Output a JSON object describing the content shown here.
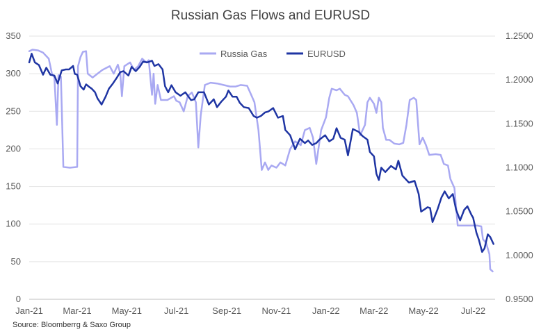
{
  "chart_data": {
    "type": "line",
    "title": "Russian Gas Flows and EURUSD",
    "source": "Source: Bloomberrg & Saxo Group",
    "x_tick_labels": [
      "Jan-21",
      "Mar-21",
      "May-21",
      "Jul-21",
      "Sep-21",
      "Nov-21",
      "Jan-22",
      "Mar-22",
      "May-22",
      "Jul-22"
    ],
    "x_range": [
      "2021-01-01",
      "2022-07-28"
    ],
    "y_left": {
      "ticks": [
        "0",
        "50",
        "100",
        "150",
        "200",
        "250",
        "300",
        "350"
      ],
      "ylim": [
        0,
        350
      ]
    },
    "y_right": {
      "ticks": [
        "0.9500",
        "1.0000",
        "1.0500",
        "1.1000",
        "1.1500",
        "1.2000",
        "1.2500"
      ],
      "ylim": [
        0.95,
        1.25
      ]
    },
    "legend": {
      "position": "top-center"
    },
    "grid": "horizontal",
    "series": [
      {
        "name": "Russia Gas",
        "axis": "left",
        "color": "#a9a9f2",
        "points": [
          [
            "2021-01-01",
            330
          ],
          [
            "2021-01-05",
            332
          ],
          [
            "2021-01-12",
            331
          ],
          [
            "2021-01-18",
            328
          ],
          [
            "2021-01-25",
            320
          ],
          [
            "2021-01-29",
            300
          ],
          [
            "2021-02-01",
            295
          ],
          [
            "2021-02-04",
            232
          ],
          [
            "2021-02-06",
            298
          ],
          [
            "2021-02-09",
            296
          ],
          [
            "2021-02-12",
            176
          ],
          [
            "2021-02-20",
            175
          ],
          [
            "2021-03-01",
            176
          ],
          [
            "2021-03-02",
            310
          ],
          [
            "2021-03-05",
            322
          ],
          [
            "2021-03-08",
            329
          ],
          [
            "2021-03-12",
            330
          ],
          [
            "2021-03-14",
            300
          ],
          [
            "2021-03-20",
            295
          ],
          [
            "2021-03-26",
            300
          ],
          [
            "2021-04-01",
            305
          ],
          [
            "2021-04-10",
            310
          ],
          [
            "2021-04-15",
            300
          ],
          [
            "2021-04-20",
            312
          ],
          [
            "2021-04-23",
            300
          ],
          [
            "2021-04-25",
            270
          ],
          [
            "2021-04-28",
            310
          ],
          [
            "2021-05-05",
            315
          ],
          [
            "2021-05-10",
            305
          ],
          [
            "2021-05-15",
            310
          ],
          [
            "2021-05-20",
            320
          ],
          [
            "2021-05-25",
            315
          ],
          [
            "2021-05-28",
            318
          ],
          [
            "2021-06-01",
            272
          ],
          [
            "2021-06-03",
            300
          ],
          [
            "2021-06-05",
            260
          ],
          [
            "2021-06-08",
            285
          ],
          [
            "2021-06-12",
            265
          ],
          [
            "2021-06-20",
            265
          ],
          [
            "2021-06-28",
            270
          ],
          [
            "2021-07-01",
            264
          ],
          [
            "2021-07-05",
            262
          ],
          [
            "2021-07-10",
            250
          ],
          [
            "2021-07-15",
            270
          ],
          [
            "2021-07-20",
            275
          ],
          [
            "2021-07-25",
            262
          ],
          [
            "2021-07-28",
            202
          ],
          [
            "2021-07-31",
            245
          ],
          [
            "2021-08-05",
            285
          ],
          [
            "2021-08-12",
            288
          ],
          [
            "2021-08-20",
            287
          ],
          [
            "2021-08-28",
            285
          ],
          [
            "2021-09-05",
            283
          ],
          [
            "2021-09-12",
            283
          ],
          [
            "2021-09-18",
            285
          ],
          [
            "2021-09-26",
            284
          ],
          [
            "2021-10-01",
            272
          ],
          [
            "2021-10-05",
            262
          ],
          [
            "2021-10-10",
            225
          ],
          [
            "2021-10-14",
            172
          ],
          [
            "2021-10-18",
            182
          ],
          [
            "2021-10-22",
            172
          ],
          [
            "2021-10-26",
            178
          ],
          [
            "2021-11-01",
            175
          ],
          [
            "2021-11-06",
            182
          ],
          [
            "2021-11-12",
            178
          ],
          [
            "2021-11-18",
            200
          ],
          [
            "2021-11-24",
            210
          ],
          [
            "2021-12-01",
            205
          ],
          [
            "2021-12-06",
            225
          ],
          [
            "2021-12-12",
            228
          ],
          [
            "2021-12-16",
            215
          ],
          [
            "2021-12-20",
            180
          ],
          [
            "2021-12-26",
            225
          ],
          [
            "2022-01-01",
            242
          ],
          [
            "2022-01-05",
            268
          ],
          [
            "2022-01-08",
            280
          ],
          [
            "2022-01-14",
            278
          ],
          [
            "2022-01-18",
            280
          ],
          [
            "2022-01-24",
            272
          ],
          [
            "2022-01-28",
            270
          ],
          [
            "2022-02-04",
            258
          ],
          [
            "2022-02-08",
            248
          ],
          [
            "2022-02-12",
            218
          ],
          [
            "2022-02-18",
            232
          ],
          [
            "2022-02-21",
            262
          ],
          [
            "2022-02-24",
            268
          ],
          [
            "2022-03-01",
            260
          ],
          [
            "2022-03-04",
            248
          ],
          [
            "2022-03-07",
            268
          ],
          [
            "2022-03-10",
            262
          ],
          [
            "2022-03-12",
            228
          ],
          [
            "2022-03-16",
            212
          ],
          [
            "2022-03-20",
            212
          ],
          [
            "2022-03-26",
            207
          ],
          [
            "2022-04-01",
            206
          ],
          [
            "2022-04-06",
            208
          ],
          [
            "2022-04-10",
            232
          ],
          [
            "2022-04-14",
            265
          ],
          [
            "2022-04-19",
            268
          ],
          [
            "2022-04-22",
            265
          ],
          [
            "2022-04-26",
            206
          ],
          [
            "2022-04-30",
            215
          ],
          [
            "2022-05-04",
            205
          ],
          [
            "2022-05-08",
            192
          ],
          [
            "2022-05-16",
            193
          ],
          [
            "2022-05-22",
            192
          ],
          [
            "2022-05-26",
            180
          ],
          [
            "2022-05-31",
            178
          ],
          [
            "2022-06-03",
            160
          ],
          [
            "2022-06-08",
            148
          ],
          [
            "2022-06-12",
            98
          ],
          [
            "2022-06-20",
            98
          ],
          [
            "2022-06-28",
            98
          ],
          [
            "2022-07-06",
            98
          ],
          [
            "2022-07-11",
            97
          ],
          [
            "2022-07-13",
            80
          ],
          [
            "2022-07-17",
            75
          ],
          [
            "2022-07-21",
            60
          ],
          [
            "2022-07-22",
            40
          ],
          [
            "2022-07-25",
            37
          ]
        ]
      },
      {
        "name": "EURUSD",
        "axis": "right",
        "color": "#1f35a3",
        "points": [
          [
            "2021-01-01",
            1.22
          ],
          [
            "2021-01-04",
            1.23
          ],
          [
            "2021-01-08",
            1.22
          ],
          [
            "2021-01-13",
            1.217
          ],
          [
            "2021-01-18",
            1.206
          ],
          [
            "2021-01-22",
            1.214
          ],
          [
            "2021-01-27",
            1.206
          ],
          [
            "2021-02-01",
            1.205
          ],
          [
            "2021-02-05",
            1.196
          ],
          [
            "2021-02-10",
            1.211
          ],
          [
            "2021-02-15",
            1.212
          ],
          [
            "2021-02-19",
            1.212
          ],
          [
            "2021-02-24",
            1.216
          ],
          [
            "2021-02-26",
            1.207
          ],
          [
            "2021-03-01",
            1.206
          ],
          [
            "2021-03-05",
            1.193
          ],
          [
            "2021-03-09",
            1.189
          ],
          [
            "2021-03-12",
            1.195
          ],
          [
            "2021-03-16",
            1.192
          ],
          [
            "2021-03-19",
            1.19
          ],
          [
            "2021-03-23",
            1.186
          ],
          [
            "2021-03-26",
            1.179
          ],
          [
            "2021-03-31",
            1.172
          ],
          [
            "2021-04-05",
            1.181
          ],
          [
            "2021-04-09",
            1.19
          ],
          [
            "2021-04-14",
            1.196
          ],
          [
            "2021-04-19",
            1.203
          ],
          [
            "2021-04-23",
            1.209
          ],
          [
            "2021-04-27",
            1.21
          ],
          [
            "2021-05-03",
            1.205
          ],
          [
            "2021-05-07",
            1.215
          ],
          [
            "2021-05-12",
            1.21
          ],
          [
            "2021-05-17",
            1.215
          ],
          [
            "2021-05-21",
            1.221
          ],
          [
            "2021-05-26",
            1.22
          ],
          [
            "2021-06-01",
            1.222
          ],
          [
            "2021-06-04",
            1.216
          ],
          [
            "2021-06-09",
            1.218
          ],
          [
            "2021-06-14",
            1.212
          ],
          [
            "2021-06-17",
            1.193
          ],
          [
            "2021-06-21",
            1.186
          ],
          [
            "2021-06-25",
            1.194
          ],
          [
            "2021-06-30",
            1.186
          ],
          [
            "2021-07-06",
            1.182
          ],
          [
            "2021-07-12",
            1.186
          ],
          [
            "2021-07-19",
            1.177
          ],
          [
            "2021-07-23",
            1.178
          ],
          [
            "2021-07-28",
            1.186
          ],
          [
            "2021-08-04",
            1.186
          ],
          [
            "2021-08-10",
            1.172
          ],
          [
            "2021-08-16",
            1.178
          ],
          [
            "2021-08-20",
            1.169
          ],
          [
            "2021-08-25",
            1.175
          ],
          [
            "2021-08-31",
            1.181
          ],
          [
            "2021-09-03",
            1.188
          ],
          [
            "2021-09-08",
            1.181
          ],
          [
            "2021-09-13",
            1.181
          ],
          [
            "2021-09-17",
            1.174
          ],
          [
            "2021-09-22",
            1.169
          ],
          [
            "2021-09-28",
            1.168
          ],
          [
            "2021-10-04",
            1.159
          ],
          [
            "2021-10-08",
            1.157
          ],
          [
            "2021-10-13",
            1.159
          ],
          [
            "2021-10-18",
            1.163
          ],
          [
            "2021-10-22",
            1.164
          ],
          [
            "2021-10-28",
            1.168
          ],
          [
            "2021-11-03",
            1.157
          ],
          [
            "2021-11-09",
            1.159
          ],
          [
            "2021-11-12",
            1.143
          ],
          [
            "2021-11-18",
            1.137
          ],
          [
            "2021-11-24",
            1.121
          ],
          [
            "2021-11-30",
            1.133
          ],
          [
            "2021-12-06",
            1.128
          ],
          [
            "2021-12-10",
            1.131
          ],
          [
            "2021-12-15",
            1.126
          ],
          [
            "2021-12-20",
            1.128
          ],
          [
            "2021-12-24",
            1.132
          ],
          [
            "2021-12-31",
            1.137
          ],
          [
            "2022-01-05",
            1.13
          ],
          [
            "2022-01-10",
            1.133
          ],
          [
            "2022-01-14",
            1.145
          ],
          [
            "2022-01-19",
            1.134
          ],
          [
            "2022-01-24",
            1.132
          ],
          [
            "2022-01-28",
            1.114
          ],
          [
            "2022-02-03",
            1.144
          ],
          [
            "2022-02-10",
            1.141
          ],
          [
            "2022-02-15",
            1.136
          ],
          [
            "2022-02-21",
            1.132
          ],
          [
            "2022-02-24",
            1.118
          ],
          [
            "2022-03-01",
            1.113
          ],
          [
            "2022-03-04",
            1.093
          ],
          [
            "2022-03-07",
            1.086
          ],
          [
            "2022-03-10",
            1.1
          ],
          [
            "2022-03-15",
            1.095
          ],
          [
            "2022-03-22",
            1.102
          ],
          [
            "2022-03-28",
            1.098
          ],
          [
            "2022-03-31",
            1.108
          ],
          [
            "2022-04-05",
            1.091
          ],
          [
            "2022-04-08",
            1.088
          ],
          [
            "2022-04-13",
            1.083
          ],
          [
            "2022-04-20",
            1.085
          ],
          [
            "2022-04-25",
            1.07
          ],
          [
            "2022-04-28",
            1.05
          ],
          [
            "2022-05-03",
            1.053
          ],
          [
            "2022-05-06",
            1.055
          ],
          [
            "2022-05-09",
            1.054
          ],
          [
            "2022-05-12",
            1.038
          ],
          [
            "2022-05-18",
            1.052
          ],
          [
            "2022-05-23",
            1.066
          ],
          [
            "2022-05-27",
            1.073
          ],
          [
            "2022-06-01",
            1.065
          ],
          [
            "2022-06-06",
            1.07
          ],
          [
            "2022-06-10",
            1.052
          ],
          [
            "2022-06-15",
            1.04
          ],
          [
            "2022-06-20",
            1.052
          ],
          [
            "2022-06-24",
            1.056
          ],
          [
            "2022-06-29",
            1.046
          ],
          [
            "2022-07-01",
            1.043
          ],
          [
            "2022-07-05",
            1.026
          ],
          [
            "2022-07-08",
            1.018
          ],
          [
            "2022-07-12",
            1.004
          ],
          [
            "2022-07-15",
            1.008
          ],
          [
            "2022-07-19",
            1.024
          ],
          [
            "2022-07-22",
            1.021
          ],
          [
            "2022-07-26",
            1.013
          ]
        ]
      }
    ]
  }
}
